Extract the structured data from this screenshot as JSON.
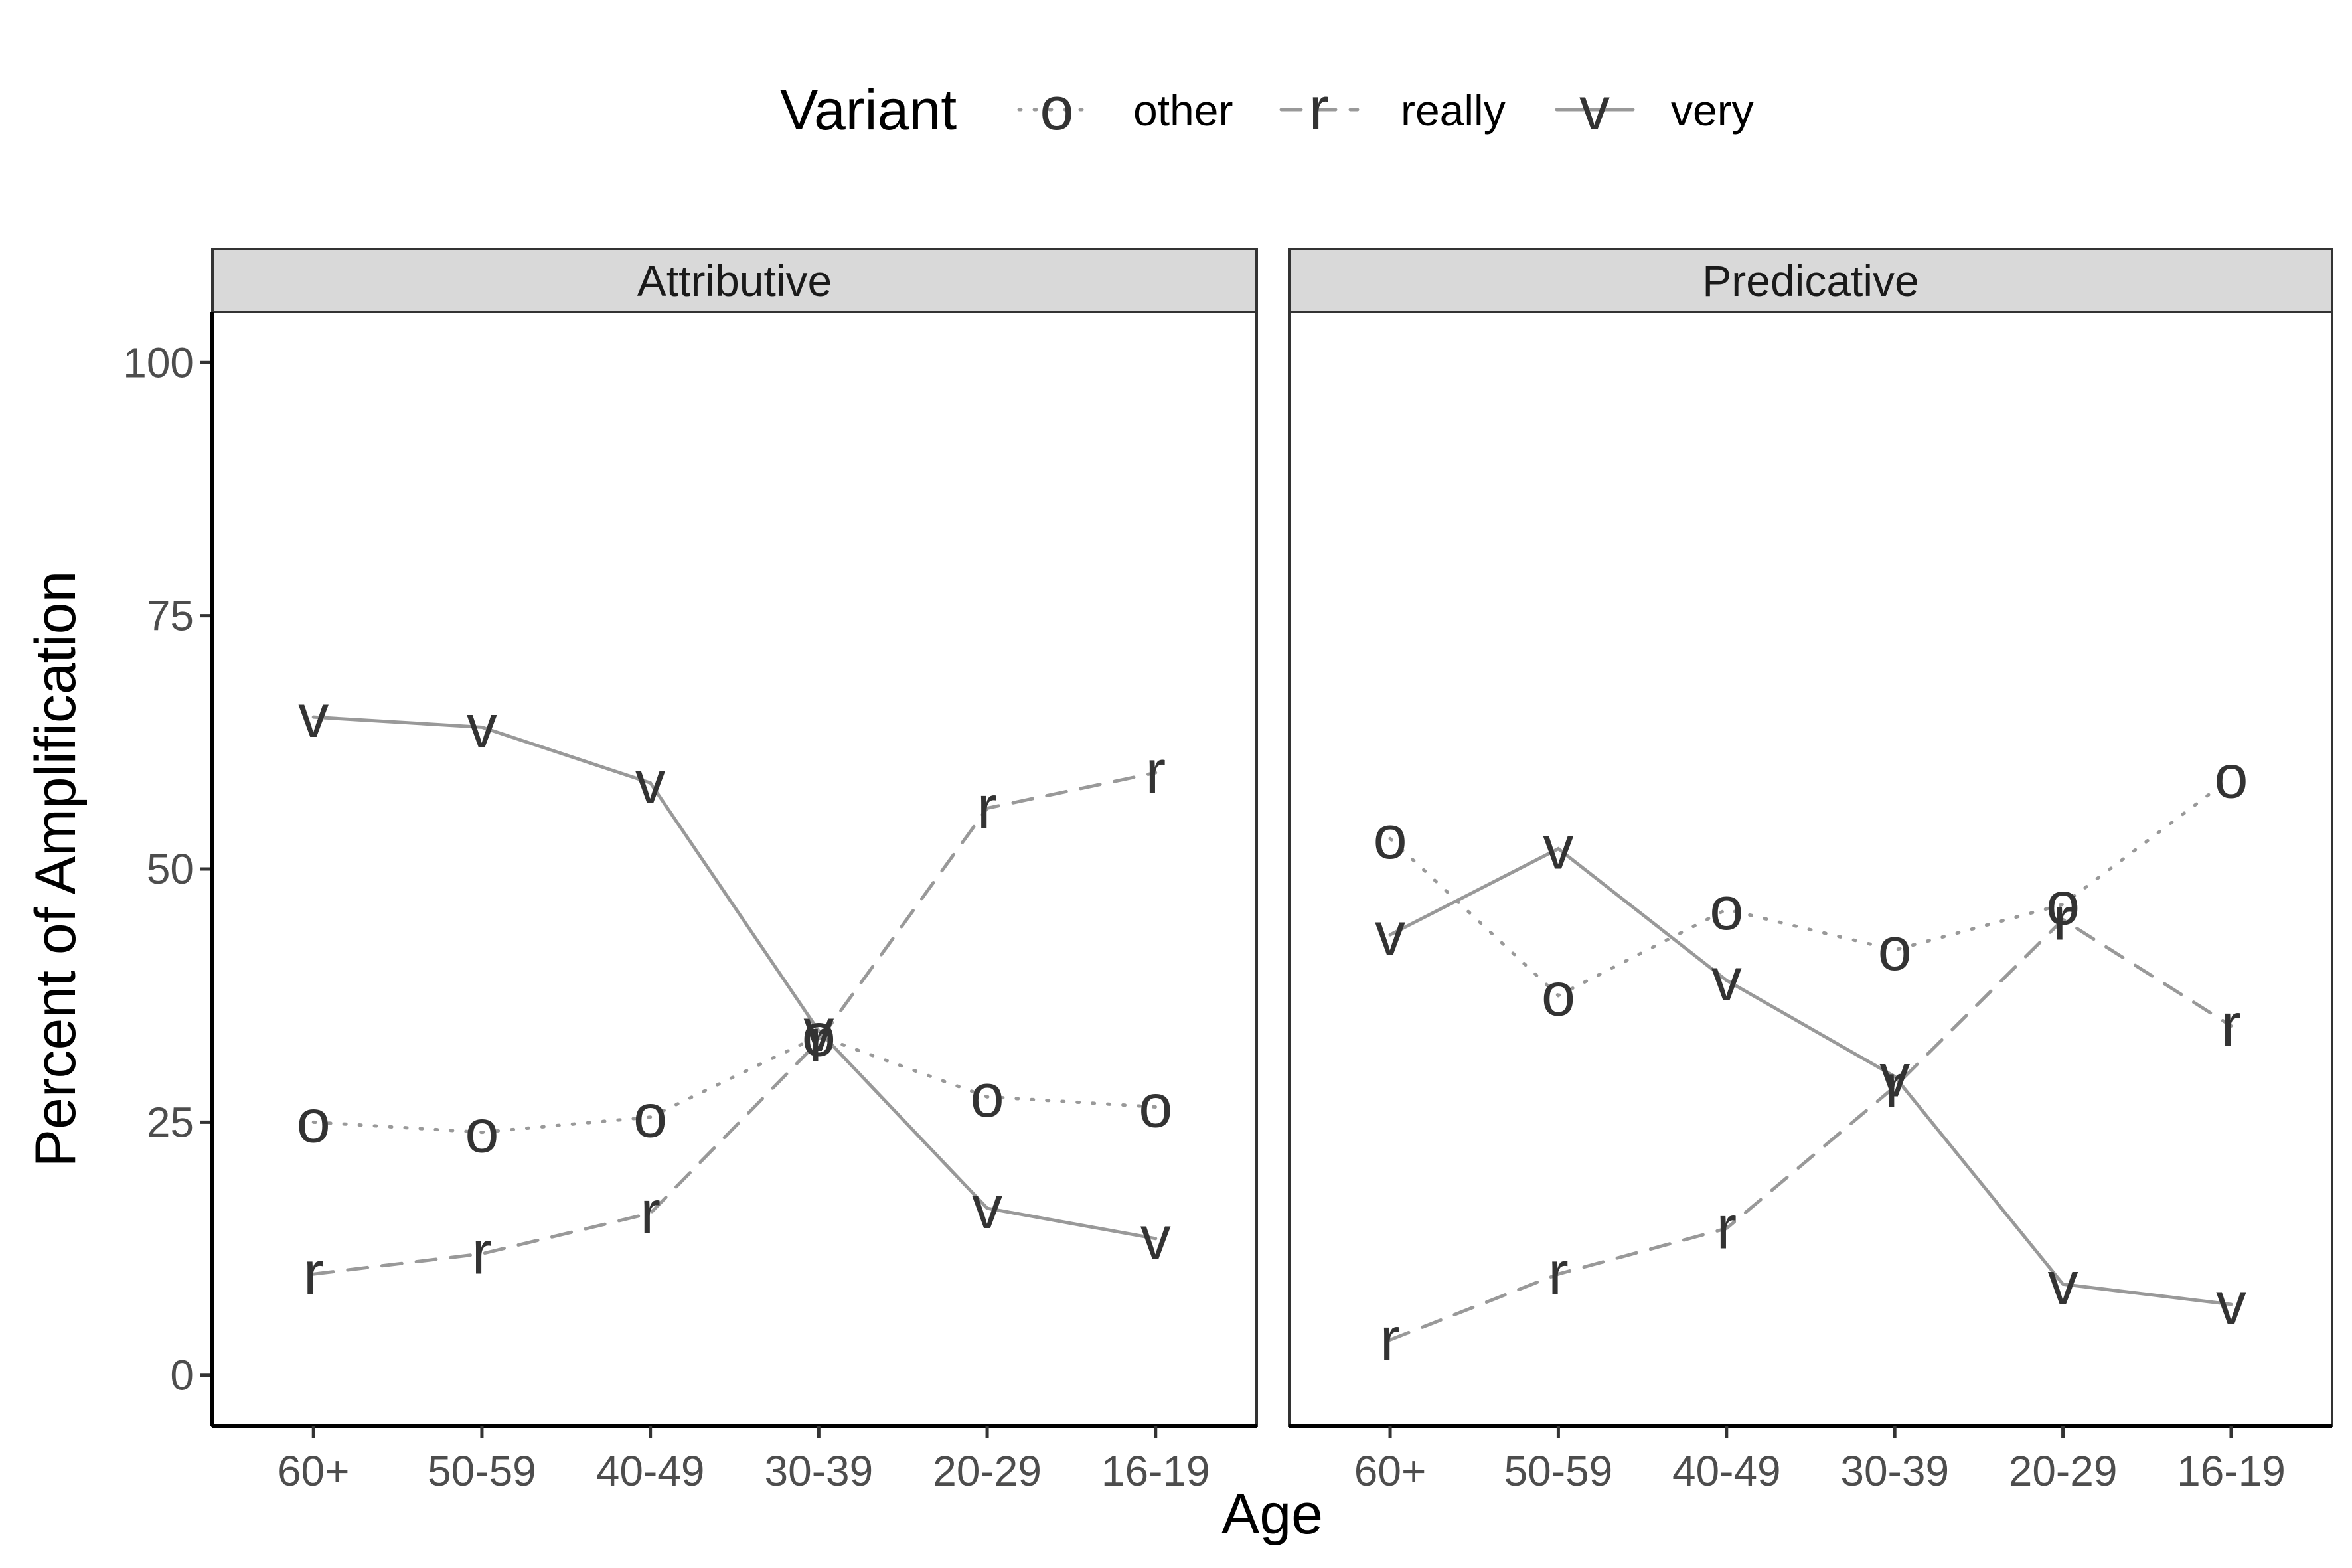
{
  "chart_data": {
    "type": "line",
    "xlabel": "Age",
    "ylabel": "Percent of Amplification",
    "ylim": [
      -5,
      105
    ],
    "yticks": [
      0,
      25,
      50,
      75,
      100
    ],
    "categories": [
      "60+",
      "50-59",
      "40-49",
      "30-39",
      "20-29",
      "16-19"
    ],
    "legend": {
      "title": "Variant",
      "position": "top",
      "items": [
        {
          "symbol": "o",
          "label": "other",
          "linetype": "dotted"
        },
        {
          "symbol": "r",
          "label": "really",
          "linetype": "dashed"
        },
        {
          "symbol": "v",
          "label": "very",
          "linetype": "solid"
        }
      ]
    },
    "grid": false,
    "panels": [
      {
        "title": "Attributive",
        "series": [
          {
            "name": "other",
            "symbol": "o",
            "values": [
              25,
              24,
              25.5,
              33.5,
              27.5,
              26.5
            ]
          },
          {
            "name": "really",
            "symbol": "r",
            "values": [
              10,
              12,
              16,
              33,
              56,
              59.5
            ]
          },
          {
            "name": "very",
            "symbol": "v",
            "values": [
              65,
              64,
              58.5,
              34,
              16.5,
              13.5
            ]
          }
        ]
      },
      {
        "title": "Predicative",
        "series": [
          {
            "name": "other",
            "symbol": "o",
            "values": [
              53,
              37.5,
              46,
              42,
              46.5,
              59
            ]
          },
          {
            "name": "really",
            "symbol": "r",
            "values": [
              3.5,
              10,
              14.5,
              28.5,
              45,
              34.5
            ]
          },
          {
            "name": "very",
            "symbol": "v",
            "values": [
              43.5,
              52,
              39,
              29.5,
              9,
              7
            ]
          }
        ]
      }
    ],
    "colors": {
      "line": "#999999",
      "marker": "#333333",
      "strip_bg": "#d9d9d9",
      "panel_border": "#333333"
    }
  }
}
